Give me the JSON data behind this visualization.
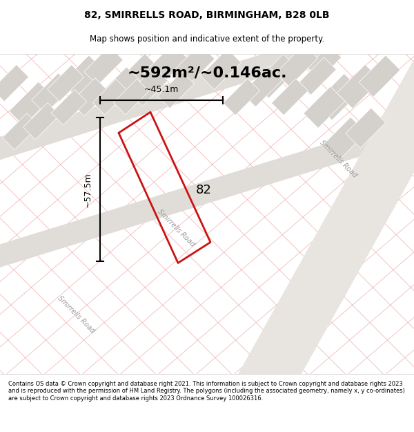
{
  "title": "82, SMIRRELLS ROAD, BIRMINGHAM, B28 0LB",
  "subtitle": "Map shows position and indicative extent of the property.",
  "area_text": "~592m²/~0.146ac.",
  "label_number": "82",
  "dim_width": "~45.1m",
  "dim_height": "~57.5m",
  "road_label_1": "Smirrells Road",
  "road_label_2": "Smirrells Road",
  "road_label_3": "Smirrells Road",
  "footer_text": "Contains OS data © Crown copyright and database right 2021. This information is subject to Crown copyright and database rights 2023 and is reproduced with the permission of HM Land Registry. The polygons (including the associated geometry, namely x, y co-ordinates) are subject to Crown copyright and database rights 2023 Ordnance Survey 100026316.",
  "map_bg": "#f0ede8",
  "plot_color": "#cc1111",
  "building_fill": "#d4d0cb",
  "pink_line_color": "#e8a0a0",
  "road_band_color": "#e0ddd8",
  "road_band_color2": "#e8e5e0"
}
